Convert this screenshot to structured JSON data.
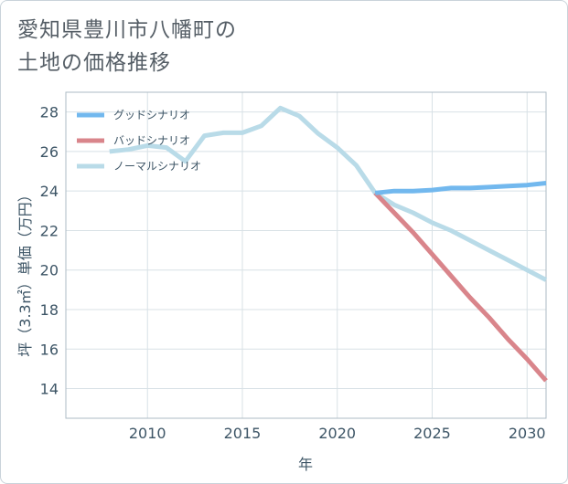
{
  "chart_data": {
    "type": "line",
    "title_lines": [
      "愛知県豊川市八幡町の",
      "土地の価格推移"
    ],
    "xlabel": "年",
    "ylabel": "坪（3.3㎡）単価（万円）",
    "xlim": [
      2005.7,
      2031
    ],
    "ylim": [
      12.5,
      29
    ],
    "xticks": [
      2010,
      2015,
      2020,
      2025,
      2030
    ],
    "yticks": [
      14,
      16,
      18,
      20,
      22,
      24,
      26,
      28
    ],
    "legend_position": "top-left",
    "series": [
      {
        "name": "グッドシナリオ",
        "color": "#72b8ee",
        "x": [
          2022,
          2023,
          2024,
          2025,
          2026,
          2027,
          2028,
          2029,
          2030,
          2031
        ],
        "values": [
          23.9,
          24.0,
          24.0,
          24.05,
          24.15,
          24.15,
          24.2,
          24.25,
          24.3,
          24.4
        ]
      },
      {
        "name": "バッドシナリオ",
        "color": "#d9858b",
        "x": [
          2022,
          2023,
          2024,
          2025,
          2026,
          2027,
          2028,
          2029,
          2030,
          2031
        ],
        "values": [
          23.9,
          22.9,
          21.9,
          20.8,
          19.7,
          18.6,
          17.6,
          16.5,
          15.5,
          14.4
        ]
      },
      {
        "name": "ノーマルシナリオ",
        "color": "#b9dbe8",
        "x": [
          2008,
          2009,
          2010,
          2011,
          2012,
          2013,
          2014,
          2015,
          2016,
          2017,
          2018,
          2019,
          2020,
          2021,
          2022,
          2023,
          2024,
          2025,
          2026,
          2027,
          2028,
          2029,
          2030,
          2031
        ],
        "values": [
          26.0,
          26.1,
          26.3,
          26.2,
          25.5,
          26.8,
          26.95,
          26.95,
          27.3,
          28.2,
          27.8,
          26.9,
          26.2,
          25.3,
          23.9,
          23.3,
          22.9,
          22.4,
          22.0,
          21.5,
          21.0,
          20.5,
          20.0,
          19.5
        ]
      }
    ]
  }
}
